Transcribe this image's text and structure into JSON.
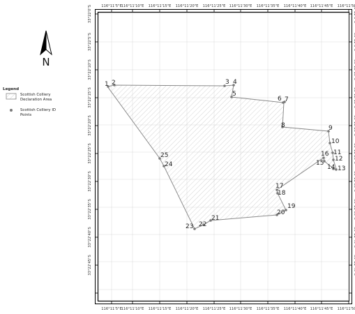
{
  "map": {
    "north_label": "N",
    "legend": {
      "title": "Legend",
      "items": [
        {
          "type": "polygon",
          "lines": [
            "Scottish Colliery",
            "Declaration Area"
          ]
        },
        {
          "type": "point",
          "lines": [
            "Scottish Colliery ID",
            "Points"
          ]
        }
      ]
    },
    "top_ticks": [
      "116°11'5\"E",
      "116°11'10\"E",
      "116°11'15\"E",
      "116°11'20\"E",
      "116°11'25\"E",
      "116°11'30\"E",
      "116°11'35\"E",
      "116°11'40\"E",
      "116°11'45\"E",
      "116°11'50\"E"
    ],
    "bottom_ticks": [
      "116°11'5\"E",
      "116°11'10\"E",
      "116°11'15\"E",
      "116°11'20\"E",
      "116°11'25\"E",
      "116°11'30\"E",
      "116°11'35\"E",
      "116°11'40\"E",
      "116°11'45\"E",
      "116°11'50\"E"
    ],
    "left_ticks": [
      "33°22'0\"S",
      "33°22'5\"S",
      "33°22'10\"S",
      "33°22'15\"S",
      "33°22'20\"S",
      "33°22'25\"S",
      "33°22'30\"S",
      "33°22'35\"S",
      "33°22'40\"S",
      "33°22'45\"S"
    ],
    "right_ticks": [
      "33°22'0\"S",
      "33°22'5\"S",
      "33°22'10\"S",
      "33°22'15\"S",
      "33°22'20\"S",
      "33°22'25\"S",
      "33°22'30\"S",
      "33°22'35\"S",
      "33°22'40\"S",
      "33°22'45\"S"
    ],
    "points": [
      {
        "id": "1"
      },
      {
        "id": "2"
      },
      {
        "id": "3"
      },
      {
        "id": "4"
      },
      {
        "id": "5"
      },
      {
        "id": "6"
      },
      {
        "id": "7"
      },
      {
        "id": "8"
      },
      {
        "id": "9"
      },
      {
        "id": "10"
      },
      {
        "id": "11"
      },
      {
        "id": "12"
      },
      {
        "id": "13"
      },
      {
        "id": "14"
      },
      {
        "id": "15"
      },
      {
        "id": "16"
      },
      {
        "id": "17"
      },
      {
        "id": "18"
      },
      {
        "id": "19"
      },
      {
        "id": "20"
      },
      {
        "id": "21"
      },
      {
        "id": "22"
      },
      {
        "id": "23"
      },
      {
        "id": "24"
      },
      {
        "id": "25"
      }
    ],
    "colors": {
      "frame": "#000000",
      "graticule": "#d9d9d9",
      "polygon_outline": "#8a8a8a",
      "hatch": "#c9c9c9",
      "point_fill": "#7a7a7a"
    }
  }
}
